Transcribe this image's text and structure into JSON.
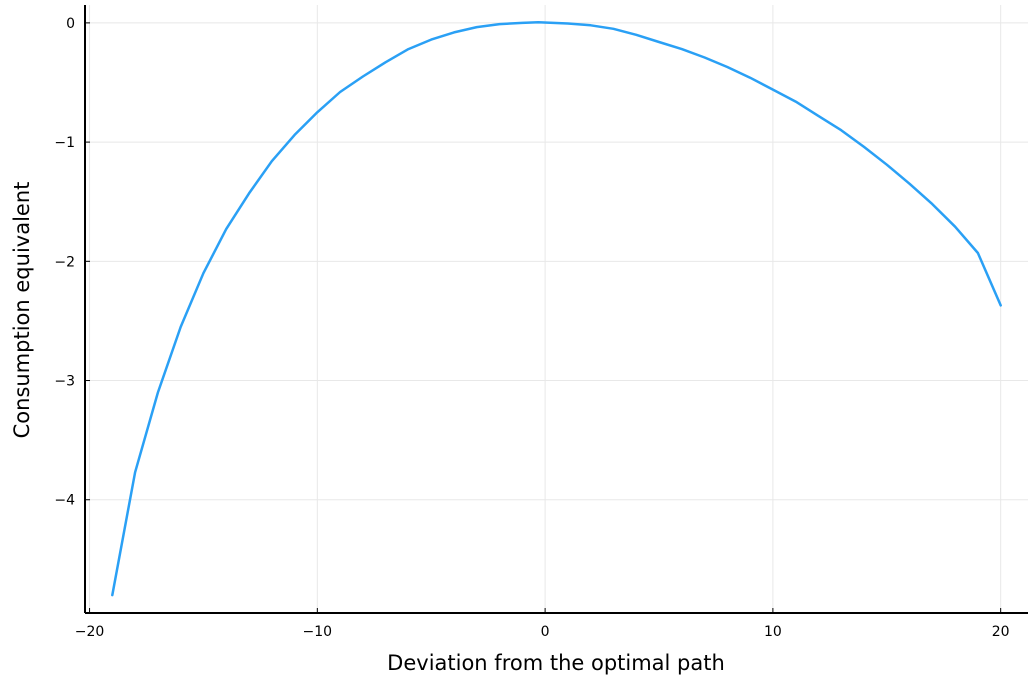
{
  "chart_data": {
    "type": "line",
    "title": "",
    "xlabel": "Deviation from the optimal path",
    "ylabel": "Consumption equivalent",
    "xlim": [
      -20.2,
      21.2
    ],
    "ylim": [
      -4.95,
      0.15
    ],
    "xticks": [
      -20,
      -10,
      0,
      10,
      20
    ],
    "xtick_labels": [
      "−20",
      "−10",
      "0",
      "10",
      "20"
    ],
    "yticks": [
      0,
      -1,
      -2,
      -3,
      -4
    ],
    "ytick_labels": [
      "0",
      "−1",
      "−2",
      "−3",
      "−4"
    ],
    "grid": true,
    "legend": "none",
    "series": [
      {
        "color": "#2aa0f5",
        "x": [
          -19,
          -18,
          -17,
          -16,
          -15,
          -14,
          -13,
          -12,
          -11,
          -10,
          -9,
          -8,
          -7,
          -6,
          -5,
          -4,
          -3,
          -2,
          -1,
          -0.3,
          1,
          2,
          3,
          4,
          5,
          6,
          7,
          8,
          9,
          10,
          11,
          12,
          13,
          14,
          15,
          16,
          17,
          18,
          19,
          20
        ],
        "y": [
          -4.8,
          -3.77,
          -3.1,
          -2.55,
          -2.1,
          -1.73,
          -1.43,
          -1.16,
          -0.94,
          -0.75,
          -0.58,
          -0.45,
          -0.33,
          -0.22,
          -0.14,
          -0.08,
          -0.035,
          -0.01,
          0.0,
          0.005,
          -0.005,
          -0.02,
          -0.05,
          -0.1,
          -0.16,
          -0.22,
          -0.29,
          -0.37,
          -0.46,
          -0.56,
          -0.66,
          -0.78,
          -0.9,
          -1.04,
          -1.19,
          -1.35,
          -1.52,
          -1.71,
          -1.93,
          -2.37
        ]
      }
    ]
  }
}
